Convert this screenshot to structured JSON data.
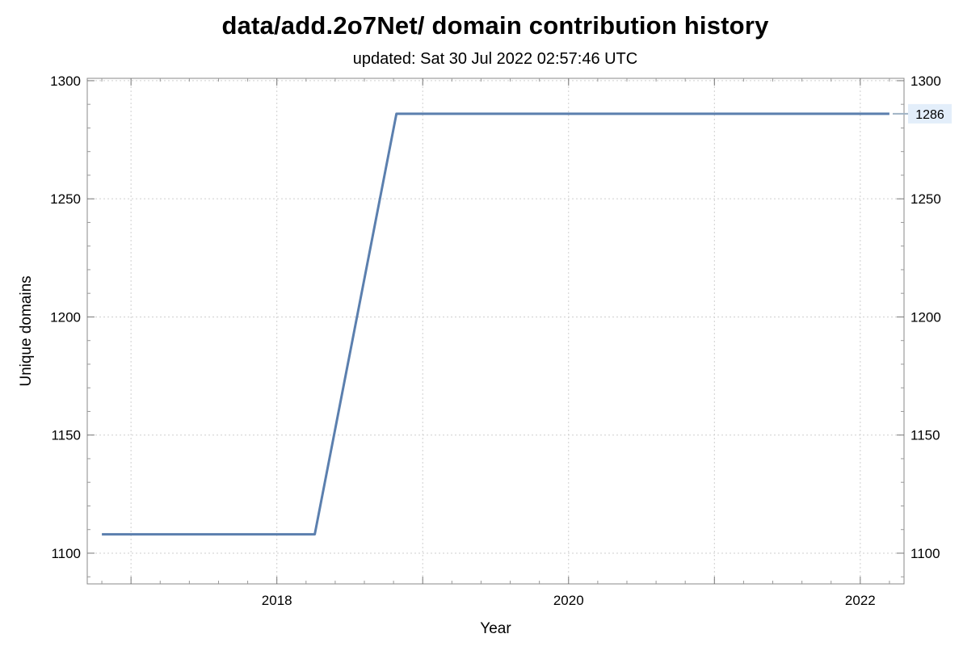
{
  "chart_data": {
    "type": "line",
    "title": "data/add.2o7Net/ domain contribution history",
    "subtitle": "updated: Sat 30 Jul 2022 02:57:46 UTC",
    "xlabel": "Year",
    "ylabel": "Unique domains",
    "xlim": [
      2016.7,
      2022.3
    ],
    "ylim": [
      1087,
      1301
    ],
    "x_ticks": [
      2018,
      2020,
      2022
    ],
    "x_tick_labels": [
      "2018",
      "2020",
      "2022"
    ],
    "y_ticks": [
      1100,
      1150,
      1200,
      1250,
      1300
    ],
    "y_tick_labels": [
      "1100",
      "1150",
      "1200",
      "1250",
      "1300"
    ],
    "grid": true,
    "series": [
      {
        "color": "#5b7fae",
        "x": [
          2016.8,
          2018.26,
          2018.82,
          2022.2
        ],
        "y": [
          1108,
          1108,
          1286,
          1286
        ]
      }
    ],
    "last_value_label": "1286"
  }
}
